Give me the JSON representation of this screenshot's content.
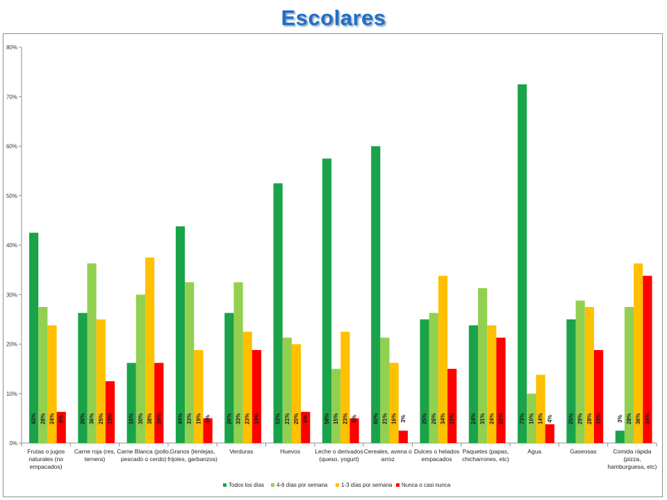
{
  "title": "Escolares",
  "chart_data": {
    "type": "bar",
    "ylim": [
      0,
      80
    ],
    "y_ticks": [
      "0%",
      "10%",
      "20%",
      "30%",
      "40%",
      "50%",
      "60%",
      "70%",
      "80%"
    ],
    "grid": false,
    "legend_position": "bottom",
    "categories": [
      [
        "Frutas o jugos",
        "naturales (no",
        "empacados)"
      ],
      [
        "Carne roja (res,",
        "ternera)"
      ],
      [
        "Carne Blanca (pollo,",
        "pescado o cerdo)"
      ],
      [
        "Granos (lentejas,",
        "frijoles, garbanzos)"
      ],
      [
        "Verduras"
      ],
      [
        "Huevos"
      ],
      [
        "Leche o derivados",
        "(queso, yogurt)"
      ],
      [
        "Cereales, avena o",
        "arroz"
      ],
      [
        "Dulces o helados",
        "empacados"
      ],
      [
        "Paquetes (papas,",
        "chicharrones, etc)"
      ],
      [
        "Agua"
      ],
      [
        "Gaseosas"
      ],
      [
        "Comida rápida",
        "(pizza,",
        "hamburguesa, etc)"
      ]
    ],
    "series": [
      {
        "name": "Todos los días",
        "color": "#1aa34a",
        "values": [
          42.5,
          26.3,
          16.2,
          43.8,
          26.3,
          52.5,
          57.5,
          60.0,
          25.0,
          23.8,
          72.5,
          25.0,
          2.5
        ],
        "labels": [
          "43%",
          "26%",
          "16%",
          "44%",
          "26%",
          "53%",
          "58%",
          "60%",
          "25%",
          "24%",
          "73%",
          "25%",
          "3%"
        ]
      },
      {
        "name": "4-6 días por semana",
        "color": "#92d050",
        "values": [
          27.5,
          36.3,
          30.0,
          32.5,
          32.5,
          21.3,
          15.0,
          21.3,
          26.3,
          31.3,
          10.0,
          28.8,
          27.5
        ],
        "labels": [
          "28%",
          "36%",
          "30%",
          "33%",
          "33%",
          "21%",
          "15%",
          "21%",
          "26%",
          "31%",
          "10%",
          "29%",
          "28%"
        ]
      },
      {
        "name": "1-3 días por semana",
        "color": "#ffc000",
        "values": [
          23.8,
          25.0,
          37.5,
          18.8,
          22.5,
          20.0,
          22.5,
          16.2,
          33.8,
          23.8,
          13.8,
          27.5,
          36.3
        ],
        "labels": [
          "24%",
          "25%",
          "38%",
          "19%",
          "23%",
          "20%",
          "23%",
          "16%",
          "34%",
          "24%",
          "14%",
          "28%",
          "36%"
        ]
      },
      {
        "name": "Nunca o casi nunca",
        "color": "#ff0000",
        "values": [
          6.3,
          12.5,
          16.2,
          5.0,
          18.8,
          6.3,
          5.0,
          2.5,
          15.0,
          21.3,
          3.8,
          18.8,
          33.8
        ],
        "labels": [
          "6%",
          "13%",
          "16%",
          "5%",
          "19%",
          "6%",
          "5%",
          "3%",
          "15%",
          "21%",
          "4%",
          "19%",
          "34%"
        ]
      }
    ]
  }
}
